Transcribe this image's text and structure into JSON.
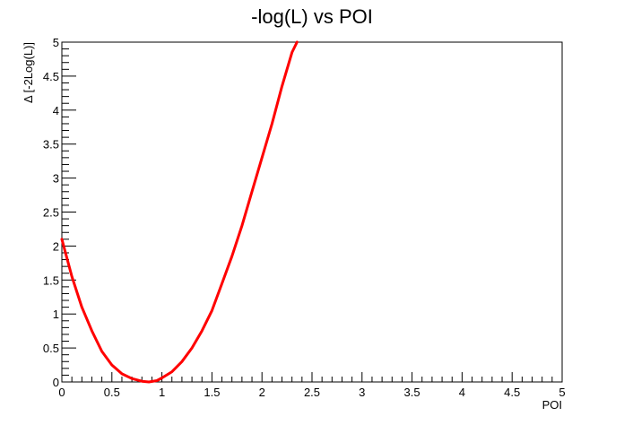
{
  "chart_data": {
    "type": "line",
    "title": "-log(L) vs POI",
    "xlabel": "POI",
    "ylabel": "Δ [-2Log(L)]",
    "xlim": [
      0,
      5
    ],
    "ylim": [
      0,
      5
    ],
    "x_ticks": [
      "0",
      "0.5",
      "1",
      "1.5",
      "2",
      "2.5",
      "3",
      "3.5",
      "4",
      "4.5",
      "5"
    ],
    "y_ticks": [
      "0",
      "0.5",
      "1",
      "1.5",
      "2",
      "2.5",
      "3",
      "3.5",
      "4",
      "4.5",
      "5"
    ],
    "grid": false,
    "series": [
      {
        "color": "#ff0000",
        "x": [
          0.0,
          0.1,
          0.2,
          0.3,
          0.4,
          0.5,
          0.6,
          0.7,
          0.8,
          0.87,
          0.95,
          1.0,
          1.1,
          1.2,
          1.3,
          1.4,
          1.5,
          1.6,
          1.7,
          1.8,
          1.9,
          2.0,
          2.1,
          2.2,
          2.3,
          2.35
        ],
        "y": [
          2.1,
          1.55,
          1.1,
          0.75,
          0.45,
          0.25,
          0.12,
          0.05,
          0.01,
          0.0,
          0.02,
          0.06,
          0.15,
          0.3,
          0.5,
          0.75,
          1.05,
          1.45,
          1.85,
          2.3,
          2.8,
          3.3,
          3.8,
          4.35,
          4.85,
          5.0
        ]
      }
    ]
  }
}
